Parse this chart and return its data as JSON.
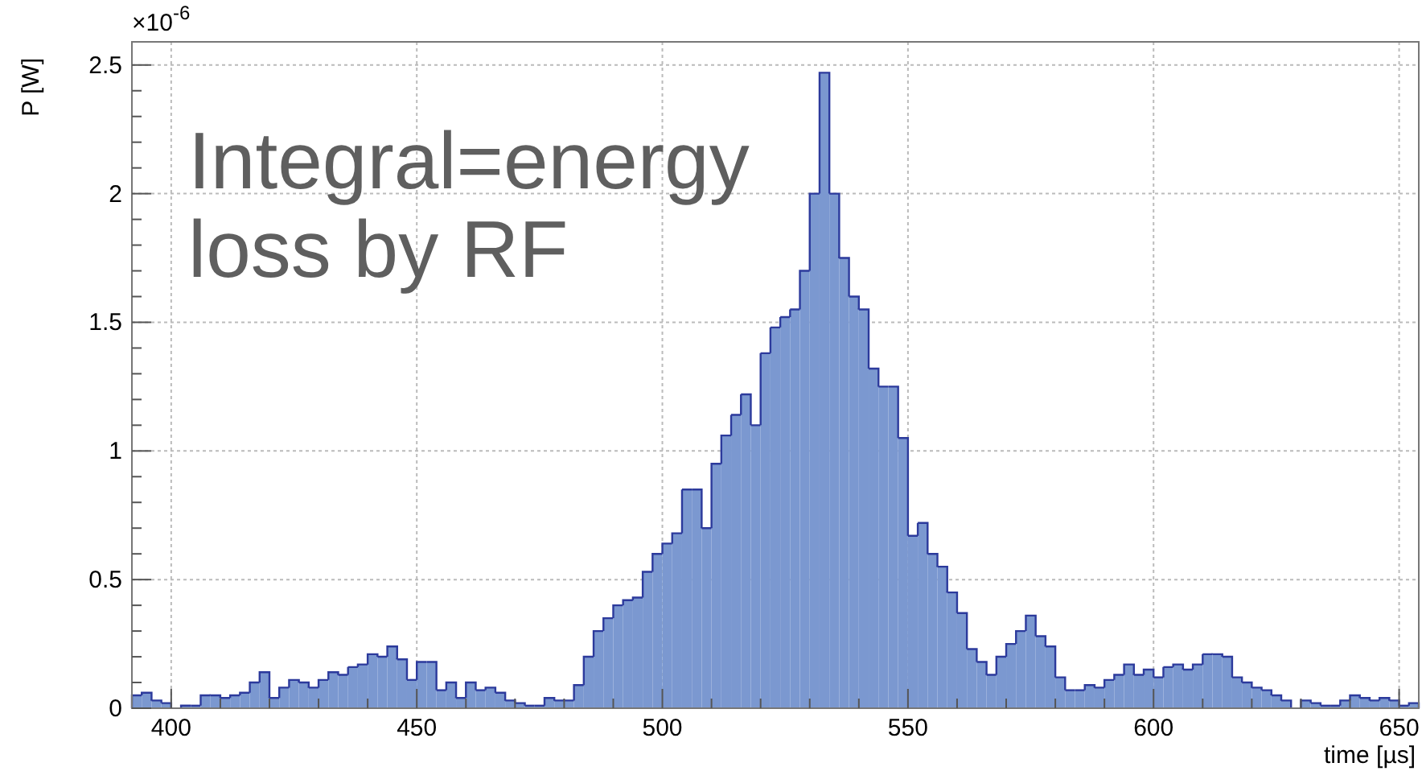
{
  "chart_data": {
    "type": "histogram",
    "xlabel": "time [µs]",
    "ylabel": "P [W]",
    "annotations": [
      "×10$^{-6}$",
      "Integral=energy\nloss by RF"
    ],
    "color": "#7b98d0",
    "bins": [
      392,
      394,
      396,
      398,
      400,
      402,
      404,
      406,
      408,
      410,
      412,
      414,
      416,
      418,
      420,
      422,
      424,
      426,
      428,
      430,
      432,
      434,
      436,
      438,
      440,
      442,
      444,
      446,
      448,
      450,
      452,
      454,
      456,
      458,
      460,
      462,
      464,
      466,
      468,
      470,
      472,
      474,
      476,
      478,
      480,
      482,
      484,
      486,
      488,
      490,
      492,
      494,
      496,
      498,
      500,
      502,
      504,
      506,
      508,
      510,
      512,
      514,
      516,
      518,
      520,
      522,
      524,
      526,
      528,
      530,
      532,
      534,
      536,
      538,
      540,
      542,
      544,
      546,
      548,
      550,
      552,
      554,
      556,
      558,
      560,
      562,
      564,
      566,
      568,
      570,
      572,
      574,
      576,
      578,
      580,
      582,
      584,
      586,
      588,
      590,
      592,
      594,
      596,
      598,
      600,
      602,
      604,
      606,
      608,
      610,
      612,
      614,
      616,
      618,
      620,
      622,
      624,
      626,
      628,
      630,
      632,
      634,
      636,
      638,
      640,
      642,
      644,
      646,
      648,
      650,
      652,
      654
    ],
    "values": [
      0.05,
      0.06,
      0.03,
      0.02,
      0,
      0.01,
      0.01,
      0.05,
      0.05,
      0.04,
      0.05,
      0.06,
      0.1,
      0.14,
      0.04,
      0.08,
      0.11,
      0.1,
      0.08,
      0.11,
      0.14,
      0.13,
      0.16,
      0.17,
      0.21,
      0.2,
      0.24,
      0.19,
      0.11,
      0.18,
      0.18,
      0.07,
      0.1,
      0.04,
      0.1,
      0.07,
      0.08,
      0.06,
      0.03,
      0.02,
      0.01,
      0.01,
      0.04,
      0.03,
      0.03,
      0.09,
      0.2,
      0.3,
      0.35,
      0.4,
      0.42,
      0.43,
      0.53,
      0.6,
      0.64,
      0.68,
      0.85,
      0.85,
      0.7,
      0.95,
      1.06,
      1.14,
      1.22,
      1.1,
      1.38,
      1.48,
      1.52,
      1.55,
      1.7,
      2.0,
      2.47,
      2.0,
      1.75,
      1.6,
      1.55,
      1.32,
      1.25,
      1.25,
      1.05,
      0.67,
      0.72,
      0.6,
      0.55,
      0.45,
      0.37,
      0.23,
      0.18,
      0.13,
      0.2,
      0.25,
      0.3,
      0.36,
      0.28,
      0.24,
      0.12,
      0.07,
      0.07,
      0.09,
      0.08,
      0.11,
      0.13,
      0.17,
      0.13,
      0.15,
      0.12,
      0.16,
      0.17,
      0.15,
      0.17,
      0.21,
      0.21,
      0.2,
      0.12,
      0.1,
      0.08,
      0.07,
      0.05,
      0.03,
      0,
      0.03,
      0.02,
      0.01,
      0.01,
      0.03,
      0.05,
      0.04,
      0.03,
      0.04,
      0.03,
      0.01,
      0.02
    ],
    "xlim": [
      392,
      654
    ],
    "xticks": [
      400,
      {
        "value": 410,
        "label": null
      },
      {
        "value": 420,
        "label": null
      },
      {
        "value": 430,
        "label": null
      },
      {
        "value": 440,
        "label": null
      },
      450,
      {
        "value": 460,
        "label": null
      },
      {
        "value": 470,
        "label": null
      },
      {
        "value": 480,
        "label": null
      },
      {
        "value": 490,
        "label": null
      },
      500,
      {
        "value": 510,
        "label": null
      },
      {
        "value": 520,
        "label": null
      },
      {
        "value": 530,
        "label": null
      },
      {
        "value": 540,
        "label": null
      },
      550,
      {
        "value": 560,
        "label": null
      },
      {
        "value": 570,
        "label": null
      },
      {
        "value": 580,
        "label": null
      },
      {
        "value": 590,
        "label": null
      },
      600,
      {
        "value": 610,
        "label": null
      },
      {
        "value": 620,
        "label": null
      },
      {
        "value": 630,
        "label": null
      },
      {
        "value": 640,
        "label": null
      },
      650
    ],
    "ylim": [
      0,
      2.59
    ],
    "yticks": [
      0,
      {
        "value": 0.1,
        "label": null
      },
      {
        "value": 0.2,
        "label": null
      },
      {
        "value": 0.3,
        "label": null
      },
      {
        "value": 0.4,
        "label": null
      },
      0.5,
      {
        "value": 0.6,
        "label": null
      },
      {
        "value": 0.7,
        "label": null
      },
      {
        "value": 0.8,
        "label": null
      },
      {
        "value": 0.9,
        "label": null
      },
      1,
      {
        "value": 1.1,
        "label": null
      },
      {
        "value": 1.2,
        "label": null
      },
      {
        "value": 1.3,
        "label": null
      },
      {
        "value": 1.4,
        "label": null
      },
      1.5,
      {
        "value": 1.6,
        "label": null
      },
      {
        "value": 1.7,
        "label": null
      },
      {
        "value": 1.8,
        "label": null
      },
      {
        "value": 1.9,
        "label": null
      },
      2,
      {
        "value": 2.1,
        "label": null
      },
      {
        "value": 2.2,
        "label": null
      },
      {
        "value": 2.3,
        "label": null
      },
      {
        "value": 2.4,
        "label": null
      },
      2.5
    ],
    "grid": true
  }
}
